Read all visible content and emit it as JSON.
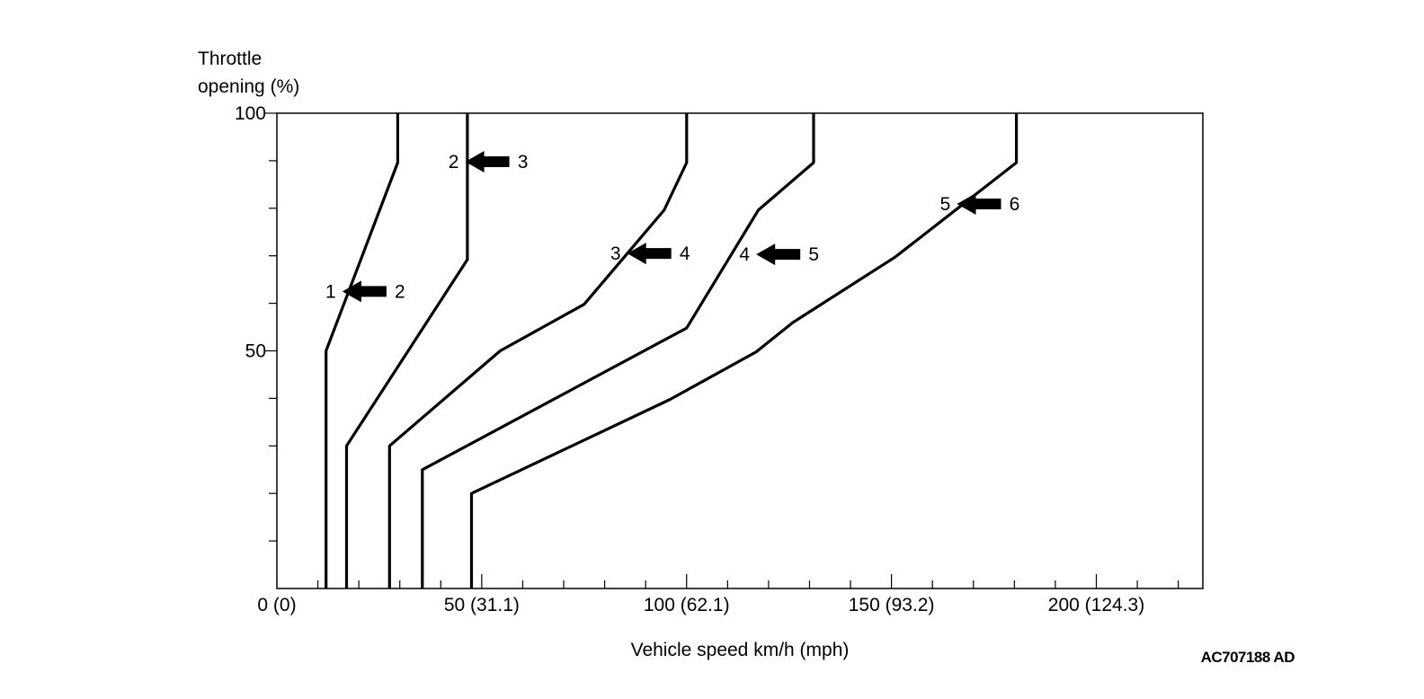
{
  "chart_data": {
    "type": "line",
    "ylabel_line1": "Throttle",
    "ylabel_line2": "opening (%)",
    "xlabel": "Vehicle speed km/h (mph)",
    "xlim": [
      0,
      226
    ],
    "ylim": [
      0,
      100
    ],
    "x_major_ticks": [
      {
        "value": 0,
        "label": "0 (0)"
      },
      {
        "value": 50,
        "label": "50 (31.1)"
      },
      {
        "value": 100,
        "label": "100 (62.1)"
      },
      {
        "value": 150,
        "label": "150 (93.2)"
      },
      {
        "value": 200,
        "label": "200 (124.3)"
      }
    ],
    "x_minor_tick_step": 10,
    "y_major_ticks": [
      {
        "value": 50,
        "label": "50"
      },
      {
        "value": 100,
        "label": "100"
      }
    ],
    "y_minor_tick_step": 10,
    "grid": false,
    "series": [
      {
        "id": "1-2",
        "from_gear": "1",
        "to_gear": "2",
        "points": [
          [
            12,
            0
          ],
          [
            12,
            50
          ],
          [
            29.5,
            89.6
          ],
          [
            29.5,
            100
          ]
        ],
        "arrow": [
          16,
          62.5
        ]
      },
      {
        "id": "2-3",
        "from_gear": "2",
        "to_gear": "3",
        "points": [
          [
            17,
            0
          ],
          [
            17,
            30
          ],
          [
            46.5,
            69.2
          ],
          [
            46.5,
            100
          ]
        ],
        "arrow": [
          46,
          89.8
        ]
      },
      {
        "id": "3-4",
        "from_gear": "3",
        "to_gear": "4",
        "points": [
          [
            27.5,
            0
          ],
          [
            27.5,
            30
          ],
          [
            54.5,
            50
          ],
          [
            75,
            59.8
          ],
          [
            94.5,
            79.6
          ],
          [
            100,
            89.6
          ],
          [
            100,
            100
          ]
        ],
        "arrow": [
          85.5,
          70.5
        ]
      },
      {
        "id": "4-5",
        "from_gear": "4",
        "to_gear": "5",
        "points": [
          [
            35.5,
            0
          ],
          [
            35.5,
            25
          ],
          [
            100,
            54.8
          ],
          [
            117.5,
            79.6
          ],
          [
            131,
            89.6
          ],
          [
            131,
            100
          ]
        ],
        "arrow": [
          117,
          70.3
        ]
      },
      {
        "id": "5-6",
        "from_gear": "5",
        "to_gear": "6",
        "points": [
          [
            47.5,
            0
          ],
          [
            47.5,
            20
          ],
          [
            96,
            39.8
          ],
          [
            117,
            49.8
          ],
          [
            126,
            56
          ],
          [
            151,
            69.8
          ],
          [
            180.5,
            89.6
          ],
          [
            180.5,
            100
          ]
        ],
        "arrow": [
          166,
          80.9
        ]
      }
    ]
  },
  "figure_code": "AC707188 AD"
}
